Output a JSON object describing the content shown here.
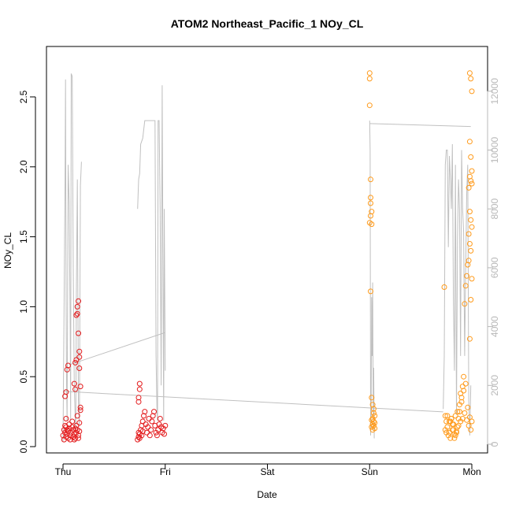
{
  "chart_data": {
    "type": "scatter",
    "title": "ATOM2 Northeast_Pacific_1 NOy_CL",
    "xlabel": "Date",
    "ylabel": "NOy_CL",
    "x_ticks": [
      "Thu",
      "Fri",
      "Sat",
      "Sun",
      "Mon"
    ],
    "xlim_days": [
      0,
      4
    ],
    "ylim": [
      0,
      2.7
    ],
    "y_ticks": [
      "0.0",
      "0.5",
      "1.0",
      "1.5",
      "2.0",
      "2.5"
    ],
    "y2_ticks": [
      "0",
      "2000",
      "4000",
      "6000",
      "8000",
      "10000",
      "12000"
    ],
    "y2lim": [
      0,
      12800
    ],
    "colors": {
      "series_a": "#e31a1c",
      "series_b": "#ff9a1a",
      "altitude": "#c0c0c0",
      "axis": "#000000",
      "axis2": "#b8b8b8"
    },
    "series": [
      {
        "color": "#e31a1c",
        "x_days": [
          0.0,
          0.01,
          0.01,
          0.02,
          0.02,
          0.03,
          0.03,
          0.03,
          0.04,
          0.04,
          0.05,
          0.05,
          0.06,
          0.06,
          0.07,
          0.07,
          0.08,
          0.09,
          0.09,
          0.1,
          0.1,
          0.11,
          0.11,
          0.12,
          0.12,
          0.13,
          0.13,
          0.14,
          0.14,
          0.15,
          0.15,
          0.16,
          0.16,
          0.17,
          0.17,
          0.02,
          0.03,
          0.04,
          0.05,
          0.11,
          0.12,
          0.12,
          0.13,
          0.13,
          0.14,
          0.14,
          0.15,
          0.15,
          0.16,
          0.16,
          0.16,
          0.17,
          0.73,
          0.74,
          0.74,
          0.75,
          0.75,
          0.76,
          0.77,
          0.77,
          0.78,
          0.78,
          0.79,
          0.8,
          0.81,
          0.82,
          0.83,
          0.84,
          0.85,
          0.86,
          0.87,
          0.88,
          0.89,
          0.9,
          0.91,
          0.92,
          0.93,
          0.94,
          0.95,
          0.96,
          0.97,
          0.98,
          0.99,
          1.0,
          0.74,
          0.74,
          0.75,
          0.75
        ],
        "y": [
          0.08,
          0.12,
          0.05,
          0.15,
          0.1,
          0.07,
          0.14,
          0.2,
          0.12,
          0.09,
          0.06,
          0.11,
          0.16,
          0.13,
          0.08,
          0.05,
          0.1,
          0.14,
          0.18,
          0.12,
          0.07,
          0.05,
          0.09,
          0.13,
          0.06,
          0.1,
          0.15,
          0.22,
          0.12,
          0.08,
          0.06,
          0.11,
          0.17,
          0.26,
          0.28,
          0.36,
          0.39,
          0.55,
          0.58,
          0.45,
          0.41,
          0.6,
          0.62,
          0.94,
          0.95,
          1.0,
          1.04,
          0.81,
          0.68,
          0.64,
          0.56,
          0.43,
          0.05,
          0.07,
          0.1,
          0.06,
          0.09,
          0.12,
          0.08,
          0.15,
          0.11,
          0.18,
          0.22,
          0.25,
          0.16,
          0.1,
          0.14,
          0.2,
          0.08,
          0.12,
          0.18,
          0.22,
          0.25,
          0.15,
          0.1,
          0.08,
          0.12,
          0.16,
          0.2,
          0.14,
          0.1,
          0.13,
          0.09,
          0.15,
          0.32,
          0.35,
          0.45,
          0.41
        ]
      },
      {
        "color": "#ff9a1a",
        "x_days": [
          3.0,
          3.0,
          3.0,
          3.01,
          3.01,
          3.01,
          3.02,
          3.01,
          3.02,
          3.0,
          3.01,
          3.02,
          3.03,
          3.04,
          3.04,
          3.05,
          3.03,
          3.02,
          3.04,
          3.05,
          3.03,
          3.04,
          3.02,
          3.05,
          3.03,
          3.74,
          3.75,
          3.76,
          3.77,
          3.78,
          3.79,
          3.8,
          3.81,
          3.82,
          3.83,
          3.84,
          3.85,
          3.86,
          3.87,
          3.88,
          3.89,
          3.9,
          3.91,
          3.92,
          3.93,
          3.94,
          3.95,
          3.96,
          3.97,
          3.98,
          3.99,
          4.0,
          3.99,
          3.98,
          3.97,
          3.96,
          3.95,
          3.94,
          3.93,
          3.92,
          3.91,
          3.9,
          3.89,
          3.88,
          3.87,
          3.86,
          3.85,
          3.84,
          3.83,
          3.82,
          3.81,
          3.8,
          3.79,
          3.78,
          3.98,
          3.99,
          4.0,
          3.98,
          3.99,
          4.0,
          3.98,
          3.99,
          4.0,
          3.97,
          3.98,
          3.99,
          4.0,
          3.97,
          3.98,
          3.99,
          4.0,
          3.73,
          3.74,
          3.75,
          3.76
        ],
        "y": [
          2.67,
          2.63,
          2.44,
          1.91,
          1.78,
          1.74,
          1.68,
          1.65,
          1.59,
          1.6,
          1.11,
          0.35,
          0.3,
          0.27,
          0.24,
          0.22,
          0.2,
          0.19,
          0.18,
          0.17,
          0.16,
          0.15,
          0.14,
          0.13,
          0.12,
          0.22,
          0.1,
          0.14,
          0.08,
          0.18,
          0.06,
          0.2,
          0.12,
          0.16,
          0.09,
          0.22,
          0.11,
          0.25,
          0.15,
          0.3,
          0.18,
          0.35,
          0.2,
          0.4,
          0.24,
          0.45,
          0.19,
          0.28,
          0.15,
          0.21,
          0.12,
          0.18,
          1.05,
          0.77,
          1.33,
          1.3,
          1.22,
          1.15,
          1.02,
          0.5,
          0.43,
          0.32,
          0.38,
          0.25,
          0.2,
          0.14,
          0.1,
          0.08,
          0.06,
          0.12,
          0.16,
          0.2,
          0.18,
          0.1,
          2.67,
          2.63,
          2.54,
          2.18,
          2.07,
          1.97,
          1.93,
          1.9,
          1.88,
          1.85,
          1.68,
          1.62,
          1.57,
          1.52,
          1.45,
          1.4,
          1.2,
          1.14,
          0.12,
          0.18,
          0.22
        ]
      }
    ],
    "altitude_line": {
      "color": "#c0c0c0",
      "x_days": [
        0.0,
        0.02,
        0.025,
        0.03,
        0.035,
        0.04,
        0.05,
        0.06,
        0.07,
        0.075,
        0.08,
        0.09,
        0.1,
        0.11,
        0.12,
        0.125,
        0.13,
        0.14,
        0.15,
        0.16,
        0.17,
        0.18,
        null,
        0.06,
        1.0,
        null,
        0.73,
        0.74,
        0.75,
        0.76,
        0.77,
        0.78,
        0.8,
        0.82,
        0.84,
        0.86,
        0.88,
        0.9,
        0.91,
        0.92,
        0.925,
        0.93,
        0.94,
        0.95,
        0.96,
        0.97,
        0.98,
        0.985,
        0.99,
        1.0,
        null,
        3.0,
        3.005,
        3.01,
        3.015,
        3.02,
        3.025,
        3.03,
        3.035,
        3.04,
        3.045,
        null,
        3.0,
        3.99,
        null,
        3.72,
        3.73,
        3.74,
        3.75,
        3.76,
        3.77,
        3.78,
        3.79,
        3.8,
        3.81,
        3.82,
        3.83,
        3.84,
        3.85,
        3.86,
        3.87,
        3.88,
        3.89,
        3.9,
        3.91,
        3.92,
        3.93,
        3.94,
        3.95,
        3.96,
        3.97,
        3.98,
        3.99,
        null,
        0.0,
        3.72
      ],
      "alt": [
        100,
        9000,
        12400,
        5000,
        2000,
        800,
        9500,
        8200,
        4000,
        800,
        12600,
        12500,
        6000,
        2000,
        800,
        400,
        5000,
        9000,
        1500,
        600,
        8800,
        9600,
        null,
        2700,
        3800,
        null,
        8000,
        9000,
        9200,
        10200,
        10300,
        10400,
        11000,
        11000,
        11000,
        11000,
        11000,
        11000,
        3000,
        1000,
        800,
        11000,
        11000,
        8000,
        2000,
        12200,
        4000,
        800,
        8000,
        2500,
        null,
        11000,
        10000,
        300,
        1000,
        5000,
        3000,
        5500,
        1000,
        2600,
        200,
        null,
        10900,
        10800,
        null,
        1200,
        3000,
        9500,
        10000,
        10000,
        6700,
        9800,
        9000,
        8000,
        10200,
        5000,
        2500,
        9500,
        1000,
        7000,
        9000,
        8000,
        3000,
        10000,
        8000,
        7200,
        3000,
        6000,
        8500,
        9500,
        1500,
        300,
        2000,
        null,
        1800,
        1100
      ]
    }
  }
}
